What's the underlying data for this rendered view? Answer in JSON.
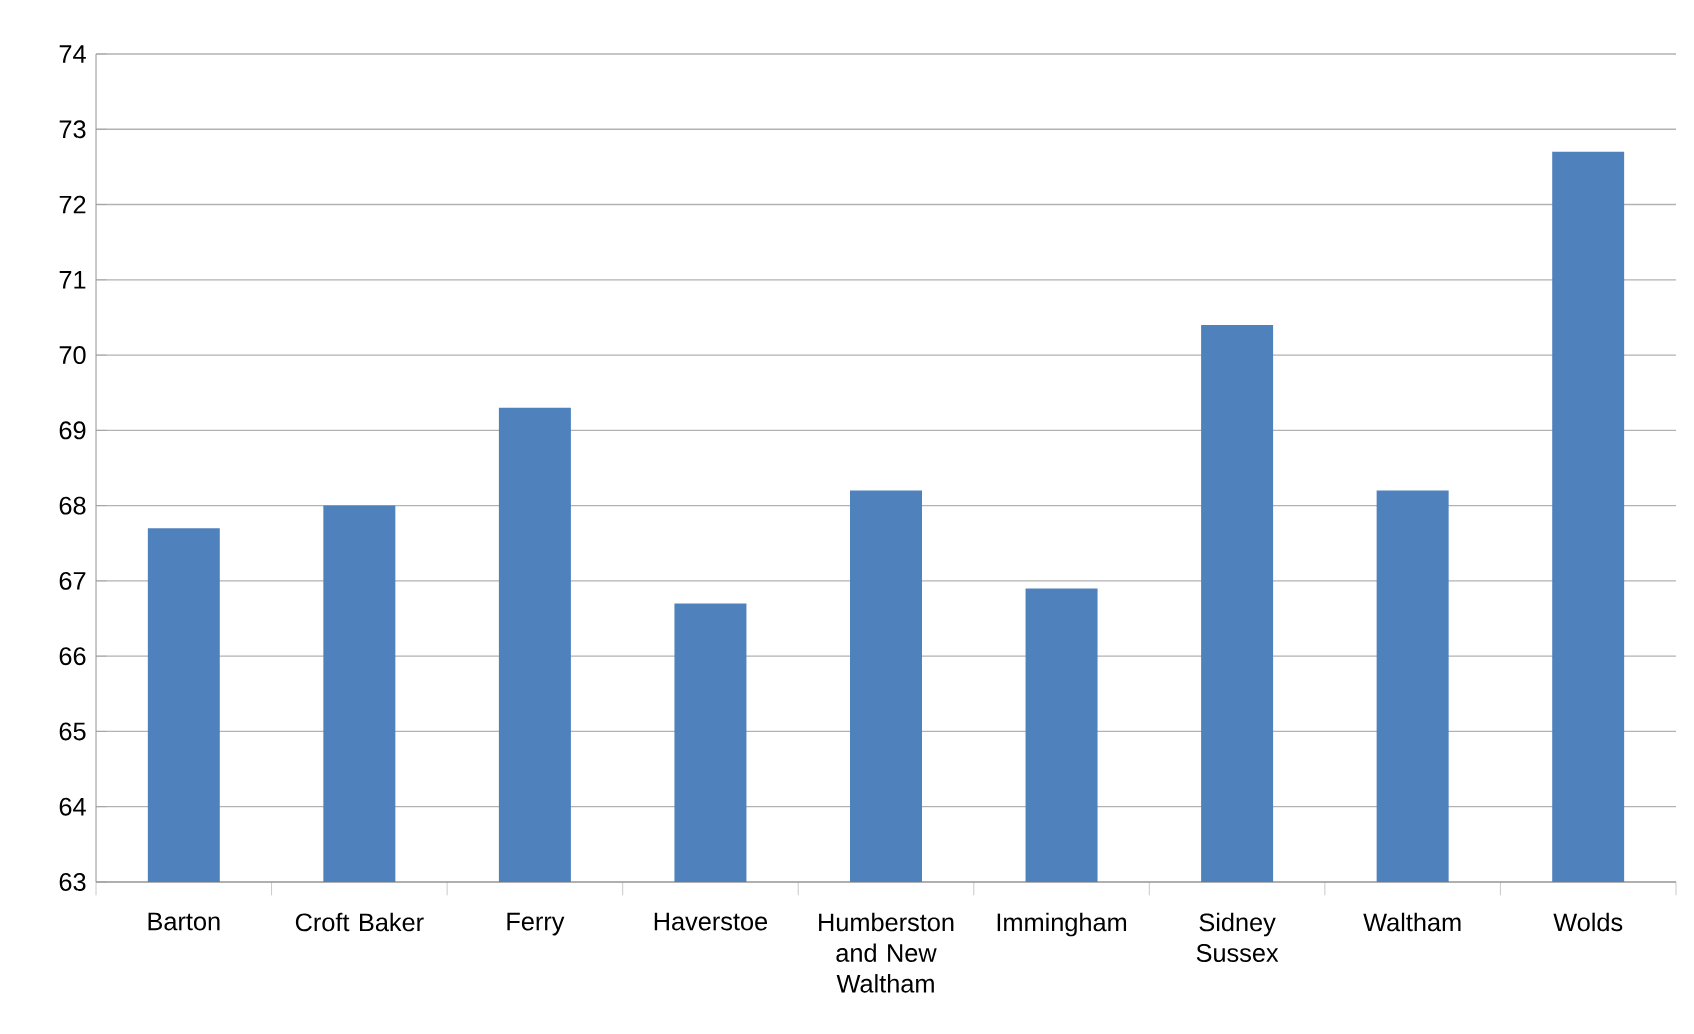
{
  "chart_data": {
    "type": "bar",
    "categories": [
      "Barton",
      "Croft Baker",
      "Ferry",
      "Haverstoe",
      "Humberston and New Waltham",
      "Immingham",
      "Sidney Sussex",
      "Waltham",
      "Wolds"
    ],
    "values": [
      67.7,
      68.0,
      69.3,
      66.7,
      68.2,
      66.9,
      70.4,
      68.2,
      72.7
    ],
    "color": "#4f81bd",
    "ylim": [
      63,
      74
    ],
    "yticks": [
      63,
      64,
      65,
      66,
      67,
      68,
      69,
      70,
      71,
      72,
      73,
      74
    ],
    "grid": "y"
  }
}
